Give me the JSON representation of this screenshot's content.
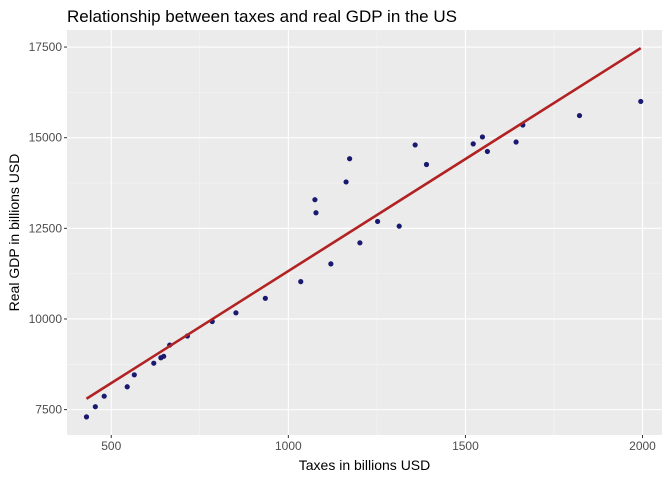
{
  "chart_data": {
    "type": "scatter",
    "title": "Relationship between taxes and real GDP in the US",
    "xlabel": "Taxes in billions USD",
    "ylabel": "Real GDP in billions USD",
    "xlim": [
      375,
      2055
    ],
    "ylim": [
      6800,
      17970
    ],
    "xticks": [
      500,
      1000,
      1500,
      2000
    ],
    "yticks": [
      7500,
      10000,
      12500,
      15000,
      17500
    ],
    "xtick_labels": [
      "500",
      "1000",
      "1500",
      "2000"
    ],
    "ytick_labels": [
      "7500",
      "10000",
      "12500",
      "15000",
      "17500"
    ],
    "grid": true,
    "points": [
      {
        "x": 430,
        "y": 7300
      },
      {
        "x": 455,
        "y": 7580
      },
      {
        "x": 480,
        "y": 7870
      },
      {
        "x": 545,
        "y": 8130
      },
      {
        "x": 565,
        "y": 8460
      },
      {
        "x": 620,
        "y": 8780
      },
      {
        "x": 640,
        "y": 8930
      },
      {
        "x": 648,
        "y": 8970
      },
      {
        "x": 665,
        "y": 9280
      },
      {
        "x": 715,
        "y": 9530
      },
      {
        "x": 785,
        "y": 9930
      },
      {
        "x": 852,
        "y": 10170
      },
      {
        "x": 935,
        "y": 10570
      },
      {
        "x": 1035,
        "y": 11030
      },
      {
        "x": 1075,
        "y": 13290
      },
      {
        "x": 1078,
        "y": 12930
      },
      {
        "x": 1120,
        "y": 11520
      },
      {
        "x": 1163,
        "y": 13780
      },
      {
        "x": 1173,
        "y": 14420
      },
      {
        "x": 1202,
        "y": 12100
      },
      {
        "x": 1252,
        "y": 12690
      },
      {
        "x": 1313,
        "y": 12560
      },
      {
        "x": 1358,
        "y": 14800
      },
      {
        "x": 1390,
        "y": 14260
      },
      {
        "x": 1522,
        "y": 14830
      },
      {
        "x": 1548,
        "y": 15020
      },
      {
        "x": 1562,
        "y": 14620
      },
      {
        "x": 1643,
        "y": 14880
      },
      {
        "x": 1662,
        "y": 15350
      },
      {
        "x": 1822,
        "y": 15610
      },
      {
        "x": 1995,
        "y": 16000
      }
    ],
    "fit_line": {
      "x": [
        430,
        1995
      ],
      "y": [
        7800,
        17470
      ]
    },
    "point_color": "#191970",
    "line_color": "#b22222",
    "panel_color": "#ebebeb"
  }
}
